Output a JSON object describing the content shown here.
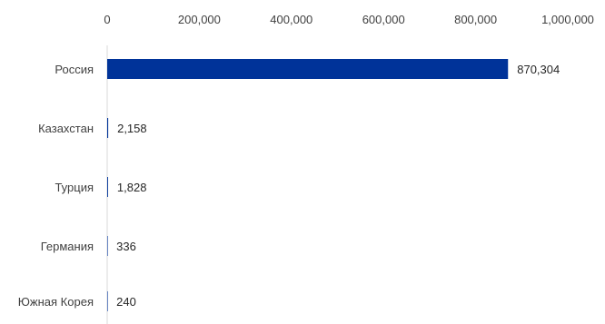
{
  "chart_data": {
    "type": "bar",
    "orientation": "horizontal",
    "categories": [
      "Россия",
      "Казахстан",
      "Турция",
      "Германия",
      "Южная Корея"
    ],
    "values": [
      870304,
      2158,
      1828,
      336,
      240
    ],
    "data_labels": [
      "870,304",
      "2,158",
      "1,828",
      "336",
      "240"
    ],
    "xlim": [
      0,
      1000000
    ],
    "x_ticks": [
      0,
      200000,
      400000,
      600000,
      800000,
      1000000
    ],
    "x_tick_labels": [
      "0",
      "200,000",
      "400,000",
      "600,000",
      "800,000",
      "1,000,000"
    ],
    "x_axis_position": "top",
    "grid": false,
    "legend": "none",
    "title": "",
    "xlabel": "",
    "ylabel": "",
    "colors": {
      "bar": "#003399",
      "axis": "#d9d9d9",
      "text": "#404040"
    }
  }
}
